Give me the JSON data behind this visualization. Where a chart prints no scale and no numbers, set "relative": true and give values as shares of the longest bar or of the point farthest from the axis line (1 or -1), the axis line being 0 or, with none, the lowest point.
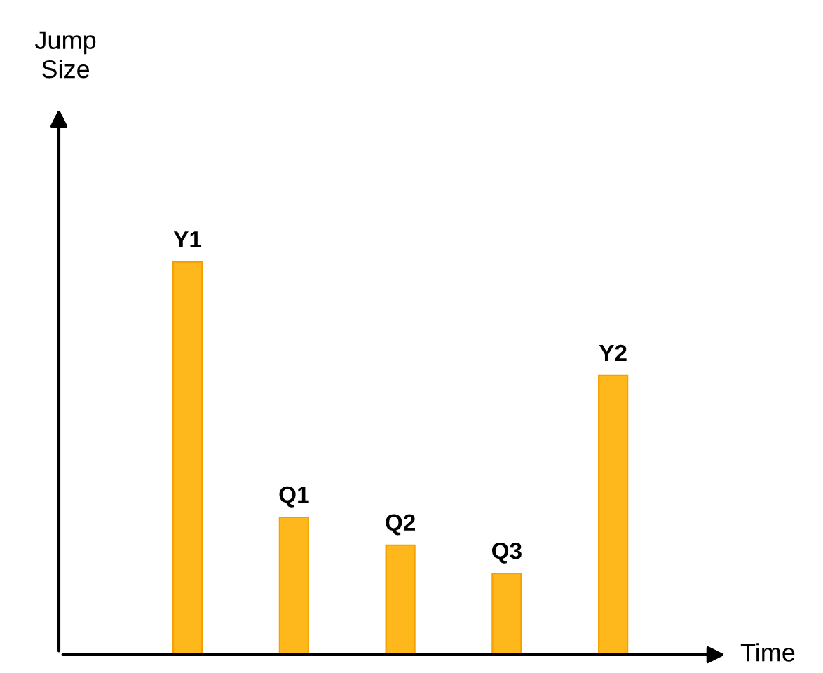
{
  "chart_data": {
    "type": "bar",
    "relative": true,
    "xlabel": "Time",
    "annotations": [
      "Jump\nSize"
    ],
    "categories": [
      "Y1",
      "Q1",
      "Q2",
      "Q3",
      "Y2"
    ],
    "values": [
      1,
      0.35,
      0.279,
      0.207,
      0.711
    ],
    "color": "#ffb81c",
    "legend": false
  }
}
